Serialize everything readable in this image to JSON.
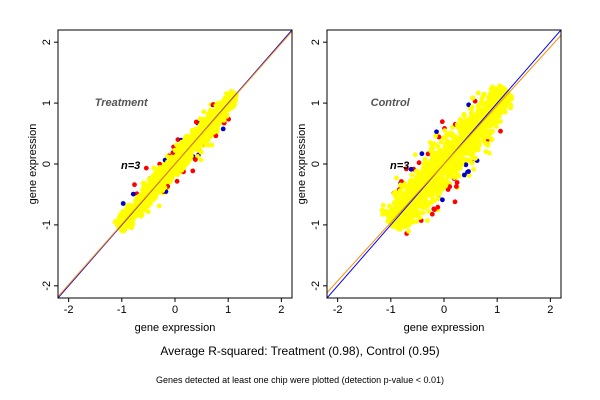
{
  "figure": {
    "summary": "Average R-squared: Treatment (0.98), Control (0.95)",
    "footnote": "Genes detected at least one chip were plotted (detection p-value < 0.01)"
  },
  "colors": {
    "points_main": "#ffff00",
    "points_red": "#ff0000",
    "points_blue": "#0000cc",
    "fit_line": "#ff8c00",
    "identity_line": "#0000ff"
  },
  "chart_data": [
    {
      "type": "scatter",
      "title": "",
      "annotation": "Treatment",
      "count_label": "n=3",
      "xlabel": "gene expression",
      "ylabel": "gene expression",
      "xlim": [
        -2.2,
        2.2
      ],
      "ylim": [
        -2.2,
        2.2
      ],
      "xticks": [
        -2,
        -1,
        0,
        1,
        2
      ],
      "yticks": [
        -2,
        -1,
        0,
        1,
        2
      ],
      "grid": false,
      "cloud": {
        "x_range": [
          -1.05,
          1.15
        ],
        "y_range": [
          -1.1,
          1.18
        ],
        "spread": 0.15
      },
      "lines": [
        {
          "name": "identity",
          "color": "identity_line",
          "slope": 1.0,
          "intercept": 0.0
        },
        {
          "name": "fit",
          "color": "fit_line",
          "slope": 0.99,
          "intercept": 0.0
        }
      ]
    },
    {
      "type": "scatter",
      "title": "",
      "annotation": "Control",
      "count_label": "n=3",
      "xlabel": "gene expression",
      "ylabel": "gene expression",
      "xlim": [
        -2.2,
        2.2
      ],
      "ylim": [
        -2.2,
        2.2
      ],
      "xticks": [
        -2,
        -1,
        0,
        1,
        2
      ],
      "yticks": [
        -2,
        -1,
        0,
        1,
        2
      ],
      "grid": false,
      "cloud": {
        "x_range": [
          -1.0,
          1.2
        ],
        "y_range": [
          -1.05,
          1.2
        ],
        "spread": 0.28
      },
      "lines": [
        {
          "name": "identity",
          "color": "identity_line",
          "slope": 1.0,
          "intercept": 0.0
        },
        {
          "name": "fit",
          "color": "fit_line",
          "slope": 0.96,
          "intercept": 0.0
        }
      ]
    }
  ]
}
